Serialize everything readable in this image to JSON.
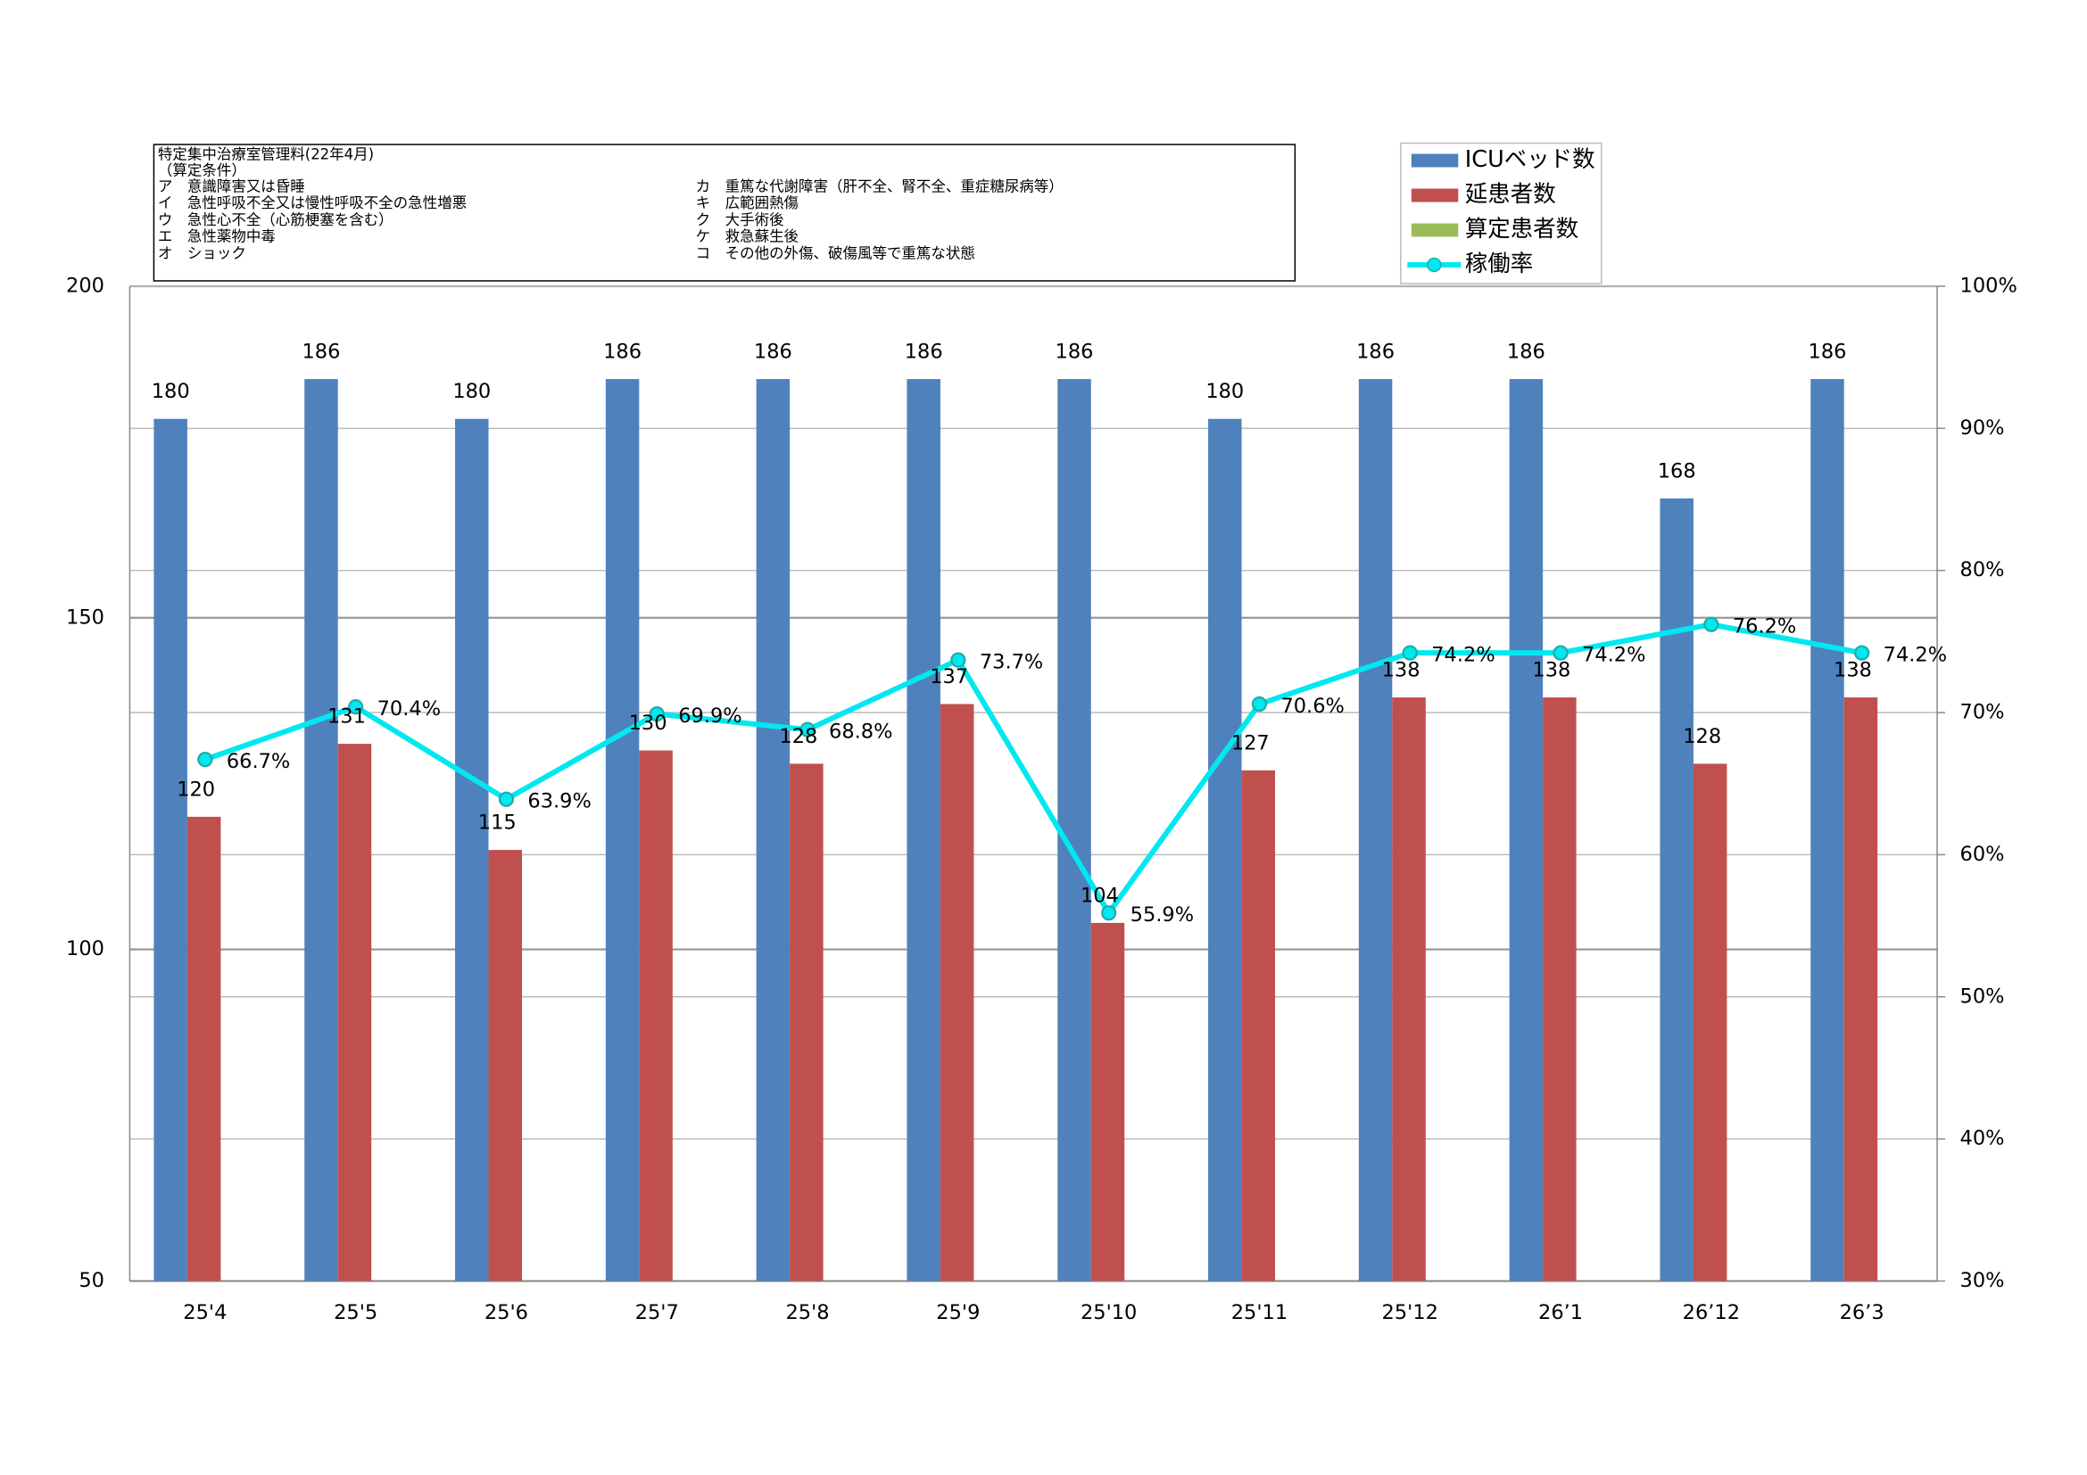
{
  "chart_data": {
    "type": "bar",
    "note": {
      "title": "特定集中治療室管理料(22年4月)",
      "condition": "（算定条件）",
      "left": [
        "ア　意識障害又は昏睡",
        "イ　急性呼吸不全又は慢性呼吸不全の急性増悪",
        "ウ　急性心不全（心筋梗塞を含む）",
        "エ　急性薬物中毒",
        "オ　ショック"
      ],
      "right": [
        "カ　重篤な代謝障害（肝不全、腎不全、重症糖尿病等）",
        "キ　広範囲熱傷",
        "ク　大手術後",
        "ケ　救急蘇生後",
        "コ　その他の外傷、破傷風等で重篤な状態"
      ]
    },
    "categories": [
      "25'4",
      "25'5",
      "25'6",
      "25'7",
      "25'8",
      "25'9",
      "25'10",
      "25'11",
      "25'12",
      "26’1",
      "26’12",
      "26’3"
    ],
    "series": [
      {
        "name": "ICUベッド数",
        "color": "#4f81bd",
        "values": [
          180,
          186,
          180,
          186,
          186,
          186,
          186,
          180,
          186,
          186,
          168,
          186
        ]
      },
      {
        "name": "延患者数",
        "color": "#c0504d",
        "values": [
          120,
          131,
          115,
          130,
          128,
          137,
          104,
          127,
          138,
          138,
          128,
          138
        ]
      },
      {
        "name": "算定患者数",
        "color": "#9bbb59",
        "values": [
          null,
          null,
          null,
          null,
          null,
          null,
          null,
          null,
          null,
          null,
          null,
          null
        ]
      },
      {
        "name": "稼働率",
        "color": "#00e8f0",
        "axis": "y2",
        "type": "line",
        "values": [
          66.7,
          70.4,
          63.9,
          69.9,
          68.8,
          73.7,
          55.9,
          70.6,
          74.2,
          74.2,
          76.2,
          74.2
        ],
        "value_labels": [
          "66.7%",
          "70.4%",
          "63.9%",
          "69.9%",
          "68.8%",
          "73.7%",
          "55.9%",
          "70.6%",
          "74.2%",
          "74.2%",
          "76.2%",
          "74.2%"
        ]
      }
    ],
    "ylim": [
      50,
      200
    ],
    "yticks": [
      50,
      100,
      150,
      200
    ],
    "y2lim": [
      30,
      100
    ],
    "y2ticks": [
      {
        "value": 30,
        "label": "30%"
      },
      {
        "value": 40,
        "label": "40%"
      },
      {
        "value": 50,
        "label": "50%"
      },
      {
        "value": 60,
        "label": "60%"
      },
      {
        "value": 70,
        "label": "70%"
      },
      {
        "value": 80,
        "label": "80%"
      },
      {
        "value": 90,
        "label": "90%"
      },
      {
        "value": 100,
        "label": "100%"
      }
    ],
    "grid": true,
    "legend": "top-right"
  }
}
